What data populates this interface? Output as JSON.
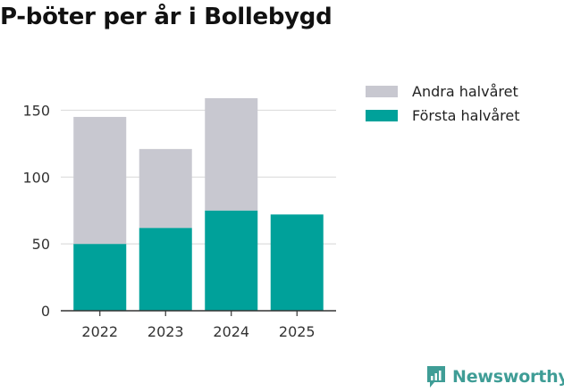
{
  "title": "P-böter per år i Bollebygd",
  "chart_data": {
    "type": "bar",
    "stacked": true,
    "categories": [
      "2022",
      "2023",
      "2024",
      "2025"
    ],
    "series": [
      {
        "name": "Första halvåret",
        "color": "#00a19a",
        "values": [
          50,
          62,
          75,
          72
        ]
      },
      {
        "name": "Andra halvåret",
        "color": "#c8c8d0",
        "values": [
          95,
          59,
          84,
          null
        ]
      }
    ],
    "ylim": [
      0,
      167
    ],
    "yticks": [
      0,
      50,
      100,
      150
    ],
    "grid": true,
    "legend_position": "right"
  },
  "legend": [
    {
      "label": "Andra halvåret",
      "color": "#c8c8d0"
    },
    {
      "label": "Första halvåret",
      "color": "#00a19a"
    }
  ],
  "brand": {
    "name": "Newsworthy",
    "color": "#3f9d96",
    "icon": "newsworthy-logo-icon"
  }
}
